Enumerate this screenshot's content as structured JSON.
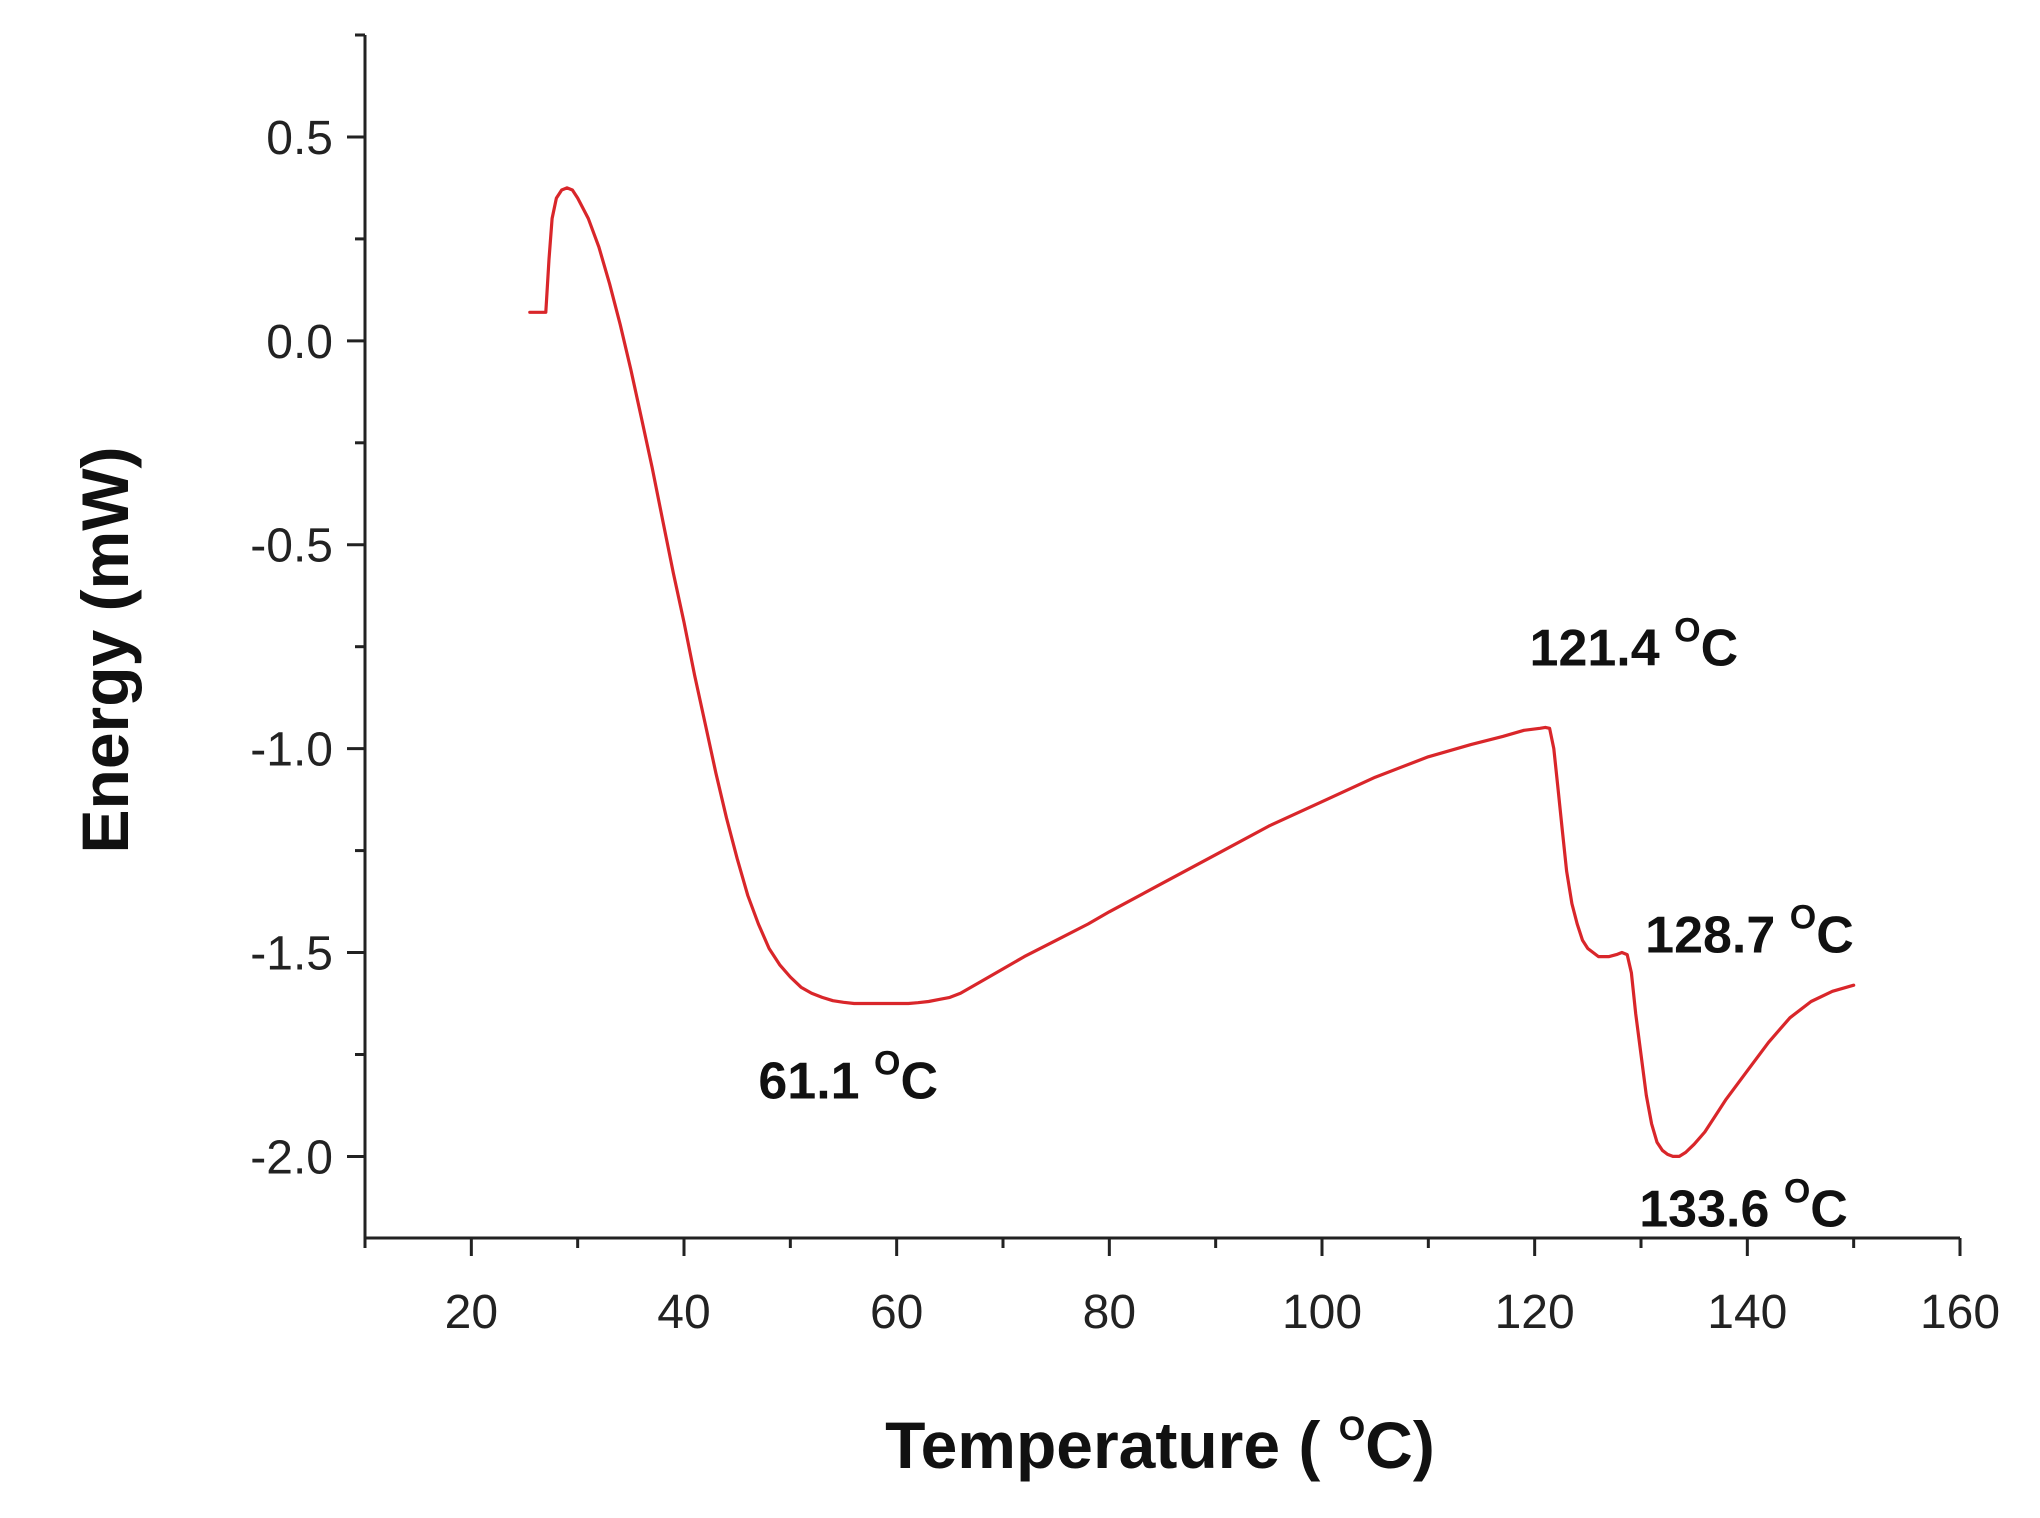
{
  "chart_data": {
    "type": "line",
    "xlabel": "Temperature ( °C)",
    "xlabel_parts": {
      "before": "Temperature ( ",
      "sup": "O",
      "after": "C)"
    },
    "ylabel": "Energy (mW)",
    "xlim": [
      10,
      160
    ],
    "ylim": [
      -2.2,
      0.75
    ],
    "x_ticks": [
      20,
      40,
      60,
      80,
      100,
      120,
      140,
      160
    ],
    "x_tick_labels": [
      "20",
      "40",
      "60",
      "80",
      "100",
      "120",
      "140",
      "160"
    ],
    "y_ticks": [
      0.5,
      0.0,
      -0.5,
      -1.0,
      -1.5,
      -2.0
    ],
    "y_tick_labels": [
      "0.5",
      "0.0",
      "-0.5",
      "-1.0",
      "-1.5",
      "-2.0"
    ],
    "x_minor_step": 10,
    "y_minor_step": 0.25,
    "grid": false,
    "series": [
      {
        "color": "#d9262a",
        "x": [
          25.5,
          26.5,
          27.0,
          27.3,
          27.6,
          28.0,
          28.5,
          29.0,
          29.5,
          30.0,
          31.0,
          32.0,
          33.0,
          34.0,
          35.0,
          36.0,
          37.0,
          38.0,
          39.0,
          40.0,
          41.0,
          42.0,
          43.0,
          44.0,
          45.0,
          46.0,
          47.0,
          48.0,
          49.0,
          50.0,
          51.0,
          52.0,
          53.0,
          54.0,
          55.0,
          56.0,
          57.0,
          58.0,
          59.0,
          60.0,
          61.1,
          62.0,
          63.0,
          64.0,
          65.0,
          66.0,
          68.0,
          70.0,
          72.0,
          75.0,
          78.0,
          80.0,
          85.0,
          90.0,
          95.0,
          100.0,
          105.0,
          110.0,
          114.0,
          117.0,
          119.0,
          120.5,
          121.0,
          121.4,
          121.8,
          122.2,
          122.6,
          123.0,
          123.5,
          124.0,
          124.5,
          125.0,
          126.0,
          127.0,
          127.7,
          128.2,
          128.7,
          129.1,
          129.5,
          130.0,
          130.5,
          131.0,
          131.5,
          132.0,
          132.5,
          133.0,
          133.6,
          134.2,
          135.0,
          136.0,
          137.0,
          138.0,
          140.0,
          142.0,
          144.0,
          146.0,
          148.0,
          150.0
        ],
        "y": [
          0.07,
          0.07,
          0.07,
          0.2,
          0.3,
          0.35,
          0.37,
          0.375,
          0.37,
          0.35,
          0.3,
          0.23,
          0.14,
          0.04,
          -0.07,
          -0.19,
          -0.31,
          -0.44,
          -0.57,
          -0.69,
          -0.82,
          -0.94,
          -1.06,
          -1.17,
          -1.27,
          -1.36,
          -1.43,
          -1.49,
          -1.53,
          -1.56,
          -1.585,
          -1.6,
          -1.61,
          -1.618,
          -1.622,
          -1.625,
          -1.625,
          -1.625,
          -1.625,
          -1.625,
          -1.625,
          -1.623,
          -1.62,
          -1.615,
          -1.61,
          -1.6,
          -1.57,
          -1.54,
          -1.51,
          -1.47,
          -1.43,
          -1.4,
          -1.33,
          -1.26,
          -1.19,
          -1.13,
          -1.07,
          -1.02,
          -0.99,
          -0.97,
          -0.955,
          -0.95,
          -0.948,
          -0.95,
          -1.0,
          -1.1,
          -1.2,
          -1.3,
          -1.38,
          -1.43,
          -1.47,
          -1.49,
          -1.51,
          -1.51,
          -1.505,
          -1.5,
          -1.505,
          -1.55,
          -1.65,
          -1.75,
          -1.85,
          -1.92,
          -1.965,
          -1.985,
          -1.995,
          -2.0,
          -2.0,
          -1.99,
          -1.97,
          -1.94,
          -1.9,
          -1.86,
          -1.79,
          -1.72,
          -1.66,
          -1.62,
          -1.595,
          -1.58
        ]
      }
    ],
    "annotations": [
      {
        "text": "61.1 °C",
        "parts": {
          "value": "61.1 ",
          "sup": "O",
          "unit": "C"
        },
        "x": 61.1,
        "y": -1.625
      },
      {
        "text": "121.4 °C",
        "parts": {
          "value": "121.4 ",
          "sup": "O",
          "unit": "C"
        },
        "x": 121.4,
        "y": -0.948
      },
      {
        "text": "128.7 °C",
        "parts": {
          "value": "128.7 ",
          "sup": "O",
          "unit": "C"
        },
        "x": 128.7,
        "y": -1.5
      },
      {
        "text": "133.6 °C",
        "parts": {
          "value": "133.6 ",
          "sup": "O",
          "unit": "C"
        },
        "x": 133.6,
        "y": -2.0
      }
    ]
  }
}
